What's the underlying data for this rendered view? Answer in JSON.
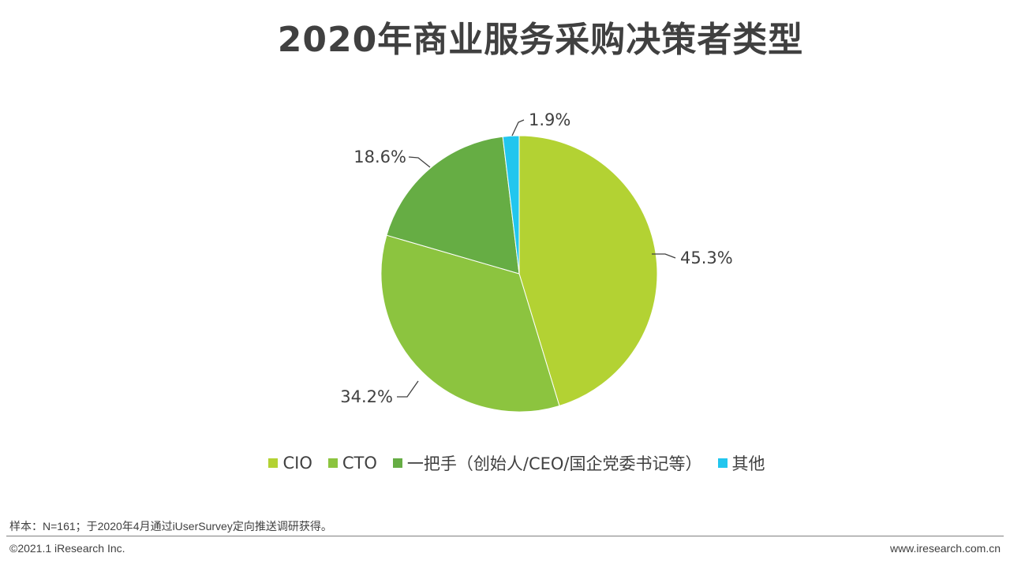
{
  "chart_data": {
    "type": "pie",
    "title": "2020年商业服务采购决策者类型",
    "slices": [
      {
        "label": "CIO",
        "value": 45.3,
        "value_label": "45.3%",
        "color": "#b3d233"
      },
      {
        "label": "CTO",
        "value": 34.2,
        "value_label": "34.2%",
        "color": "#8cc43f"
      },
      {
        "label": "一把手（创始人/CEO/国企党委书记等）",
        "value": 18.6,
        "value_label": "18.6%",
        "color": "#66ad44"
      },
      {
        "label": "其他",
        "value": 1.9,
        "value_label": "1.9%",
        "color": "#22c6ee"
      }
    ],
    "legend_position": "bottom"
  },
  "footer": {
    "note": "样本：N=161；于2020年4月通过iUserSurvey定向推送调研获得。",
    "copyright": "©2021.1 iResearch Inc.",
    "website": "www.iresearch.com.cn"
  }
}
